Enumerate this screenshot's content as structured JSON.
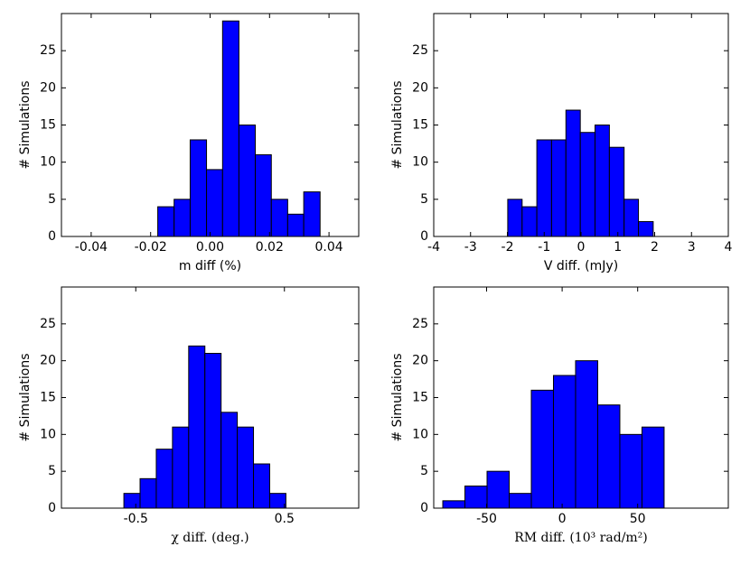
{
  "chart_data": [
    {
      "type": "histogram",
      "xlabel": "m diff (%)",
      "ylabel": "# Simulations",
      "color": "#0000ff",
      "bins": [
        -0.0176,
        -0.0121,
        -0.0067,
        -0.0012,
        0.0042,
        0.0097,
        0.0152,
        0.0206,
        0.0261,
        0.0315,
        0.037
      ],
      "counts": [
        4,
        5,
        13,
        9,
        29,
        15,
        11,
        5,
        3,
        6
      ],
      "xlim": [
        -0.05,
        0.05
      ],
      "xticks": [
        -0.04,
        -0.02,
        {
          "value": 0,
          "label": "0.00"
        },
        0.02,
        0.04
      ],
      "ylim": [
        0,
        30
      ],
      "yticks": [
        0,
        5,
        10,
        15,
        20,
        25
      ]
    },
    {
      "type": "histogram",
      "xlabel": "V diff. (mJy)",
      "ylabel": "# Simulations",
      "color": "#0000ff",
      "bins": [
        -1.99,
        -1.6,
        -1.2,
        -0.8,
        -0.41,
        -0.02,
        0.38,
        0.77,
        1.17,
        1.56,
        1.96
      ],
      "counts": [
        5,
        4,
        13,
        13,
        17,
        14,
        15,
        12,
        5,
        2
      ],
      "xlim": [
        -4,
        4
      ],
      "xticks": [
        -4,
        -3,
        -2,
        -1,
        0,
        1,
        2,
        3,
        4
      ],
      "ylim": [
        0,
        30
      ],
      "yticks": [
        0,
        5,
        10,
        15,
        20,
        25
      ]
    },
    {
      "type": "histogram",
      "xlabel": "χ diff. (deg.)",
      "ylabel": "# Simulations",
      "color": "#0000ff",
      "bins": [
        -0.58,
        -0.471,
        -0.362,
        -0.253,
        -0.144,
        -0.035,
        0.074,
        0.183,
        0.292,
        0.401,
        0.51
      ],
      "counts": [
        2,
        4,
        8,
        11,
        22,
        21,
        13,
        11,
        6,
        2
      ],
      "xlim": [
        -1,
        1
      ],
      "xticks": [
        -0.5,
        0.5
      ],
      "ylim": [
        0,
        30
      ],
      "yticks": [
        0,
        5,
        10,
        15,
        20,
        25
      ]
    },
    {
      "type": "histogram",
      "xlabel": "RM diff. (10³ rad/m²)",
      "ylabel": "# Simulations",
      "color": "#0000ff",
      "bins": [
        -79,
        -64.35,
        -49.7,
        -35.05,
        -20.4,
        -5.75,
        8.9,
        23.55,
        38.2,
        52.85,
        67.5
      ],
      "counts": [
        1,
        3,
        5,
        2,
        16,
        18,
        20,
        14,
        10,
        11
      ],
      "xlim": [
        -85,
        110
      ],
      "xticks": [
        -50,
        0,
        50
      ],
      "ylim": [
        0,
        30
      ],
      "yticks": [
        0,
        5,
        10,
        15,
        20,
        25
      ]
    }
  ]
}
